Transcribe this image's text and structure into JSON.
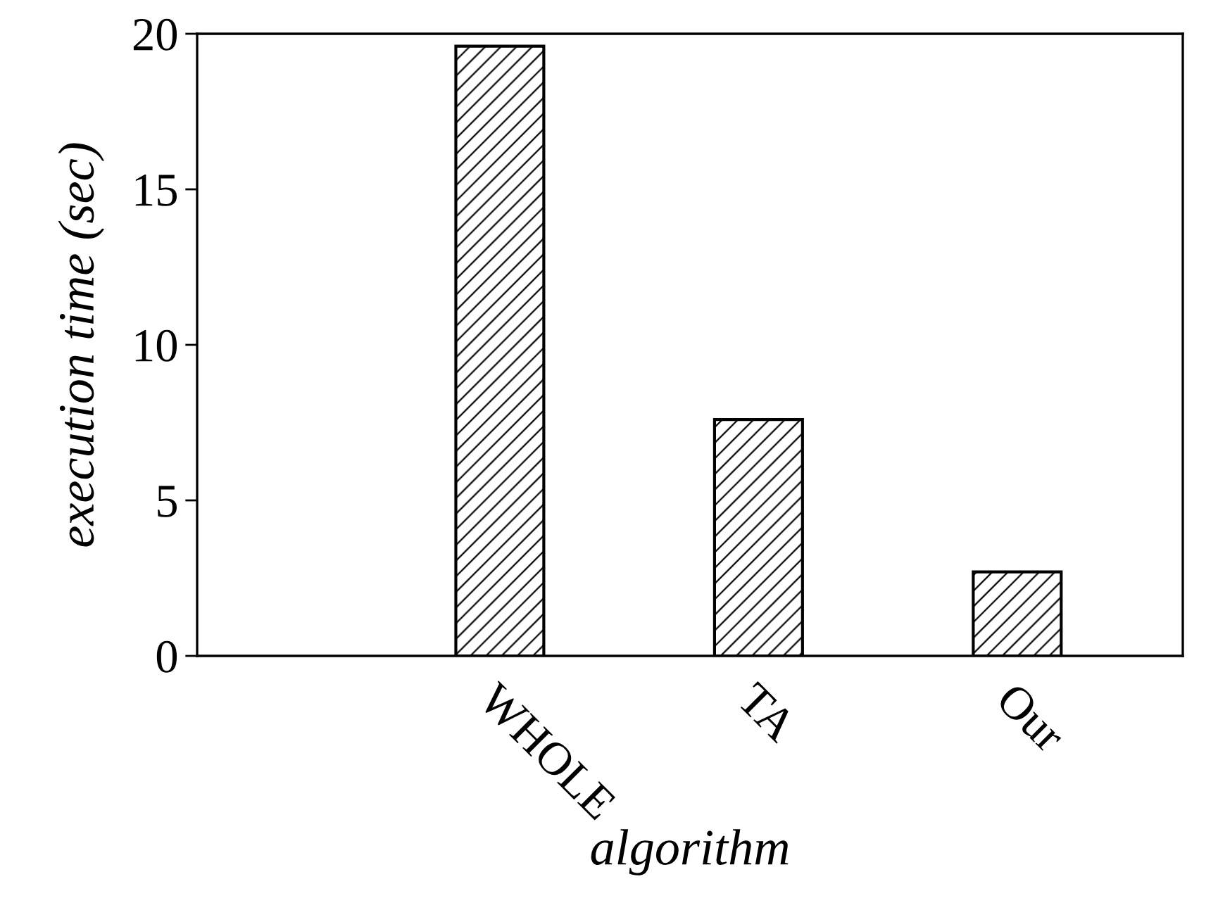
{
  "chart_data": {
    "type": "bar",
    "xlabel": "algorithm",
    "ylabel": "execution time (sec)",
    "categories": [
      "WHOLE",
      "TA",
      "Our"
    ],
    "values": [
      19.6,
      7.6,
      2.7
    ],
    "color": "#000000",
    "ylim": [
      0,
      20
    ],
    "yticks": [
      0,
      5,
      10,
      15,
      20
    ],
    "grid": false,
    "legend": false
  }
}
